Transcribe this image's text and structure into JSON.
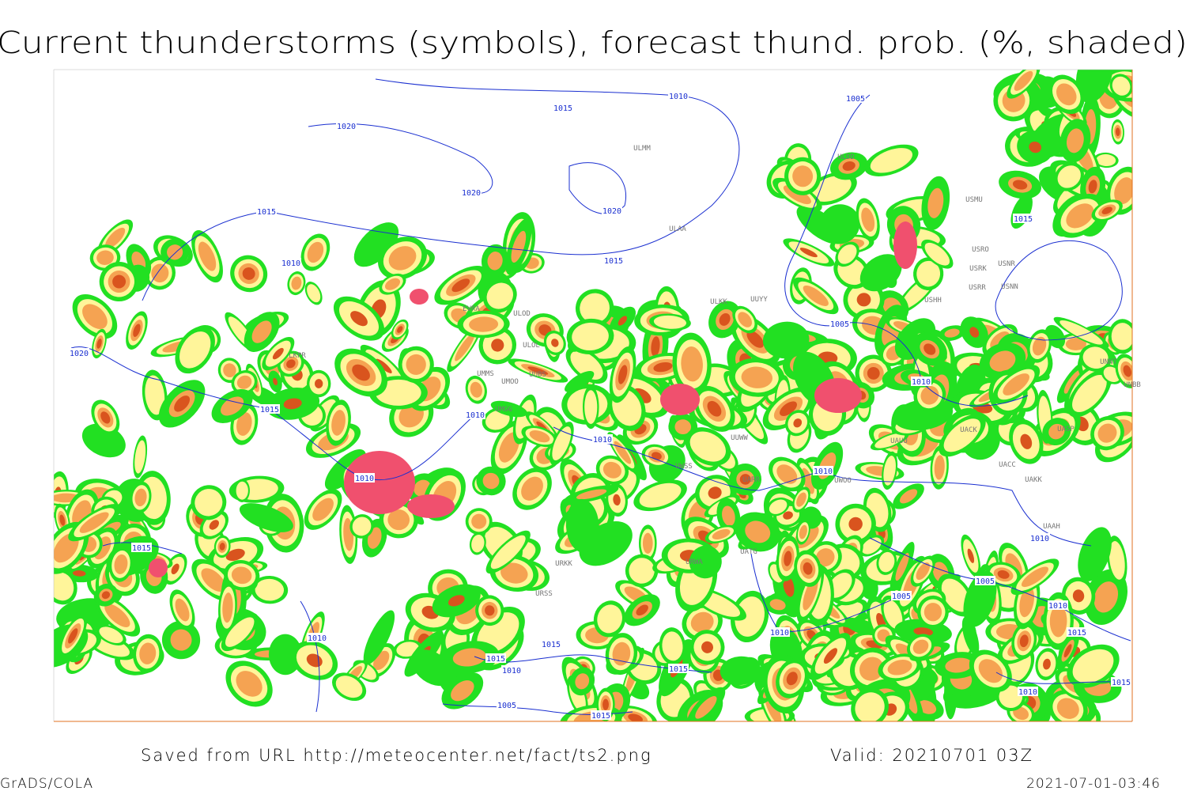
{
  "header": {
    "title": "Current thunderstorms (symbols), forecast thund. prob. (%, shaded)"
  },
  "isobars": [
    "1010",
    "1015",
    "1020",
    "1020",
    "1020",
    "1015",
    "1015",
    "1010",
    "1005",
    "1015",
    "1020",
    "1005",
    "1010",
    "1015",
    "1010",
    "1010",
    "1010",
    "1010",
    "1015",
    "1010",
    "1005",
    "1005",
    "1010",
    "1015",
    "1010",
    "1010",
    "1015",
    "1015",
    "1010",
    "1015",
    "1015",
    "1010",
    "1005",
    "1015"
  ],
  "stations": [
    "ULMM",
    "ULAA",
    "ULDD",
    "USMU",
    "USRO",
    "USRK",
    "USNR",
    "USRR",
    "USNN",
    "USHH",
    "ULKK",
    "UUYY",
    "ULOD",
    "ULOL",
    "EVRA",
    "UMMS",
    "UMOO",
    "UUBS",
    "UMGG",
    "UUWW",
    "UWSS",
    "UARR",
    "UACK",
    "UASP",
    "UACC",
    "UAKK",
    "UAAH",
    "UNNT",
    "UNBB",
    "UAUU",
    "UWOO",
    "URWA",
    "UATG",
    "URSS",
    "URKK",
    "LKPR"
  ],
  "footer": {
    "source": "Saved from URL http://meteocenter.net/fact/ts2.png",
    "valid": "Valid: 20210701 03Z",
    "software": "GrADS/COLA",
    "timestamp": "2021-07-01-03:46"
  }
}
